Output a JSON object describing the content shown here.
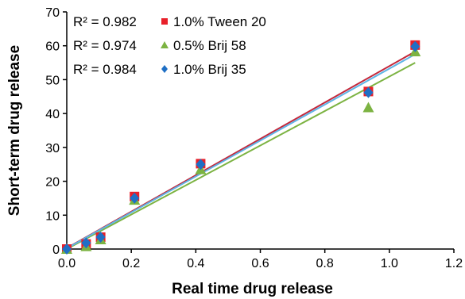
{
  "chart_data": {
    "type": "scatter",
    "title": "",
    "xlabel": "Real time drug release",
    "ylabel": "Short-term drug release",
    "xlim": [
      0,
      1.2
    ],
    "ylim": [
      0,
      70
    ],
    "xticks": [
      0,
      0.2,
      0.4,
      0.6,
      0.8,
      1.0,
      1.2
    ],
    "yticks": [
      0,
      10,
      20,
      30,
      40,
      50,
      60,
      70
    ],
    "xtick_labels": [
      "0.0",
      "0.2",
      "0.4",
      "0.6",
      "0.8",
      "1.0",
      "1.2"
    ],
    "ytick_labels": [
      "0",
      "10",
      "20",
      "30",
      "40",
      "50",
      "60",
      "70"
    ],
    "grid": false,
    "legend_position": "top-left",
    "series": [
      {
        "name": "1.0% Tween 20",
        "r2_label": "R² = 0.982",
        "marker": "square",
        "color": "#e8202a",
        "line_color": "#c4273a",
        "points": [
          [
            0,
            0
          ],
          [
            0.06,
            1.5
          ],
          [
            0.105,
            3.5
          ],
          [
            0.21,
            15.5
          ],
          [
            0.415,
            25.2
          ],
          [
            0.935,
            46.5
          ],
          [
            1.08,
            60.2
          ]
        ],
        "fit": [
          [
            0,
            0.3
          ],
          [
            1.08,
            58.3
          ]
        ]
      },
      {
        "name": "0.5% Brij 58",
        "r2_label": "R² = 0.974",
        "marker": "triangle",
        "color": "#7cb342",
        "line_color": "#7cb342",
        "points": [
          [
            0,
            0
          ],
          [
            0.06,
            0.8
          ],
          [
            0.105,
            2.8
          ],
          [
            0.21,
            14.5
          ],
          [
            0.415,
            23.5
          ],
          [
            0.935,
            41.8
          ],
          [
            1.08,
            58.3
          ]
        ],
        "fit": [
          [
            0,
            0.0
          ],
          [
            1.08,
            55.0
          ]
        ]
      },
      {
        "name": "1.0% Brij 35",
        "r2_label": "R² = 0.984",
        "marker": "diamond",
        "color": "#1f6fc5",
        "line_color": "#5fb4e6",
        "points": [
          [
            0,
            0
          ],
          [
            0.06,
            1.8
          ],
          [
            0.105,
            3.5
          ],
          [
            0.21,
            15.0
          ],
          [
            0.415,
            25.0
          ],
          [
            0.935,
            46.2
          ],
          [
            1.08,
            59.8
          ]
        ],
        "fit": [
          [
            0,
            0.2
          ],
          [
            1.08,
            57.5
          ]
        ]
      }
    ]
  }
}
